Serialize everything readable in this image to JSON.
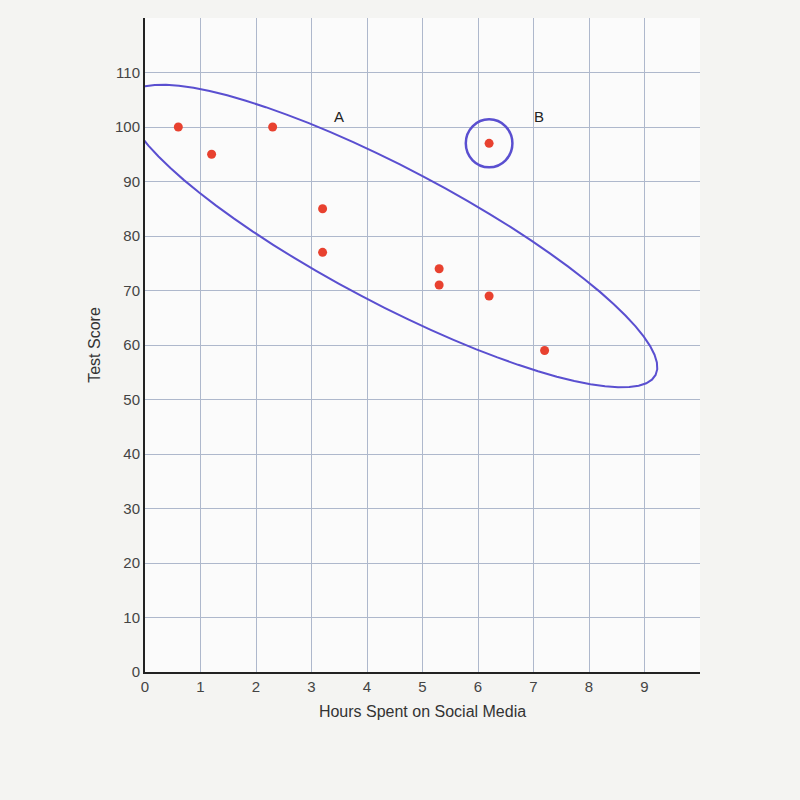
{
  "chart_data": {
    "type": "scatter",
    "x_label": "Hours Spent on Social Media",
    "y_label": "Test Score",
    "x": [
      0.6,
      1.2,
      2.3,
      3.2,
      3.2,
      5.3,
      5.3,
      6.2,
      7.2,
      6.2
    ],
    "values": [
      100,
      95,
      100,
      85,
      77,
      74,
      71,
      69,
      59,
      97
    ],
    "color": "#e8412f",
    "marker": "circle",
    "xlim": [
      0,
      10
    ],
    "ylim": [
      0,
      120
    ],
    "xticks": [
      0,
      1,
      2,
      3,
      4,
      5,
      6,
      7,
      8,
      9
    ],
    "yticks": [
      0,
      10,
      20,
      30,
      40,
      50,
      60,
      70,
      80,
      90,
      100,
      110
    ],
    "grid": true,
    "annotations": [
      {
        "text": "A",
        "x": 3.5,
        "y": 102
      },
      {
        "text": "B",
        "x": 7.1,
        "y": 102
      }
    ]
  }
}
